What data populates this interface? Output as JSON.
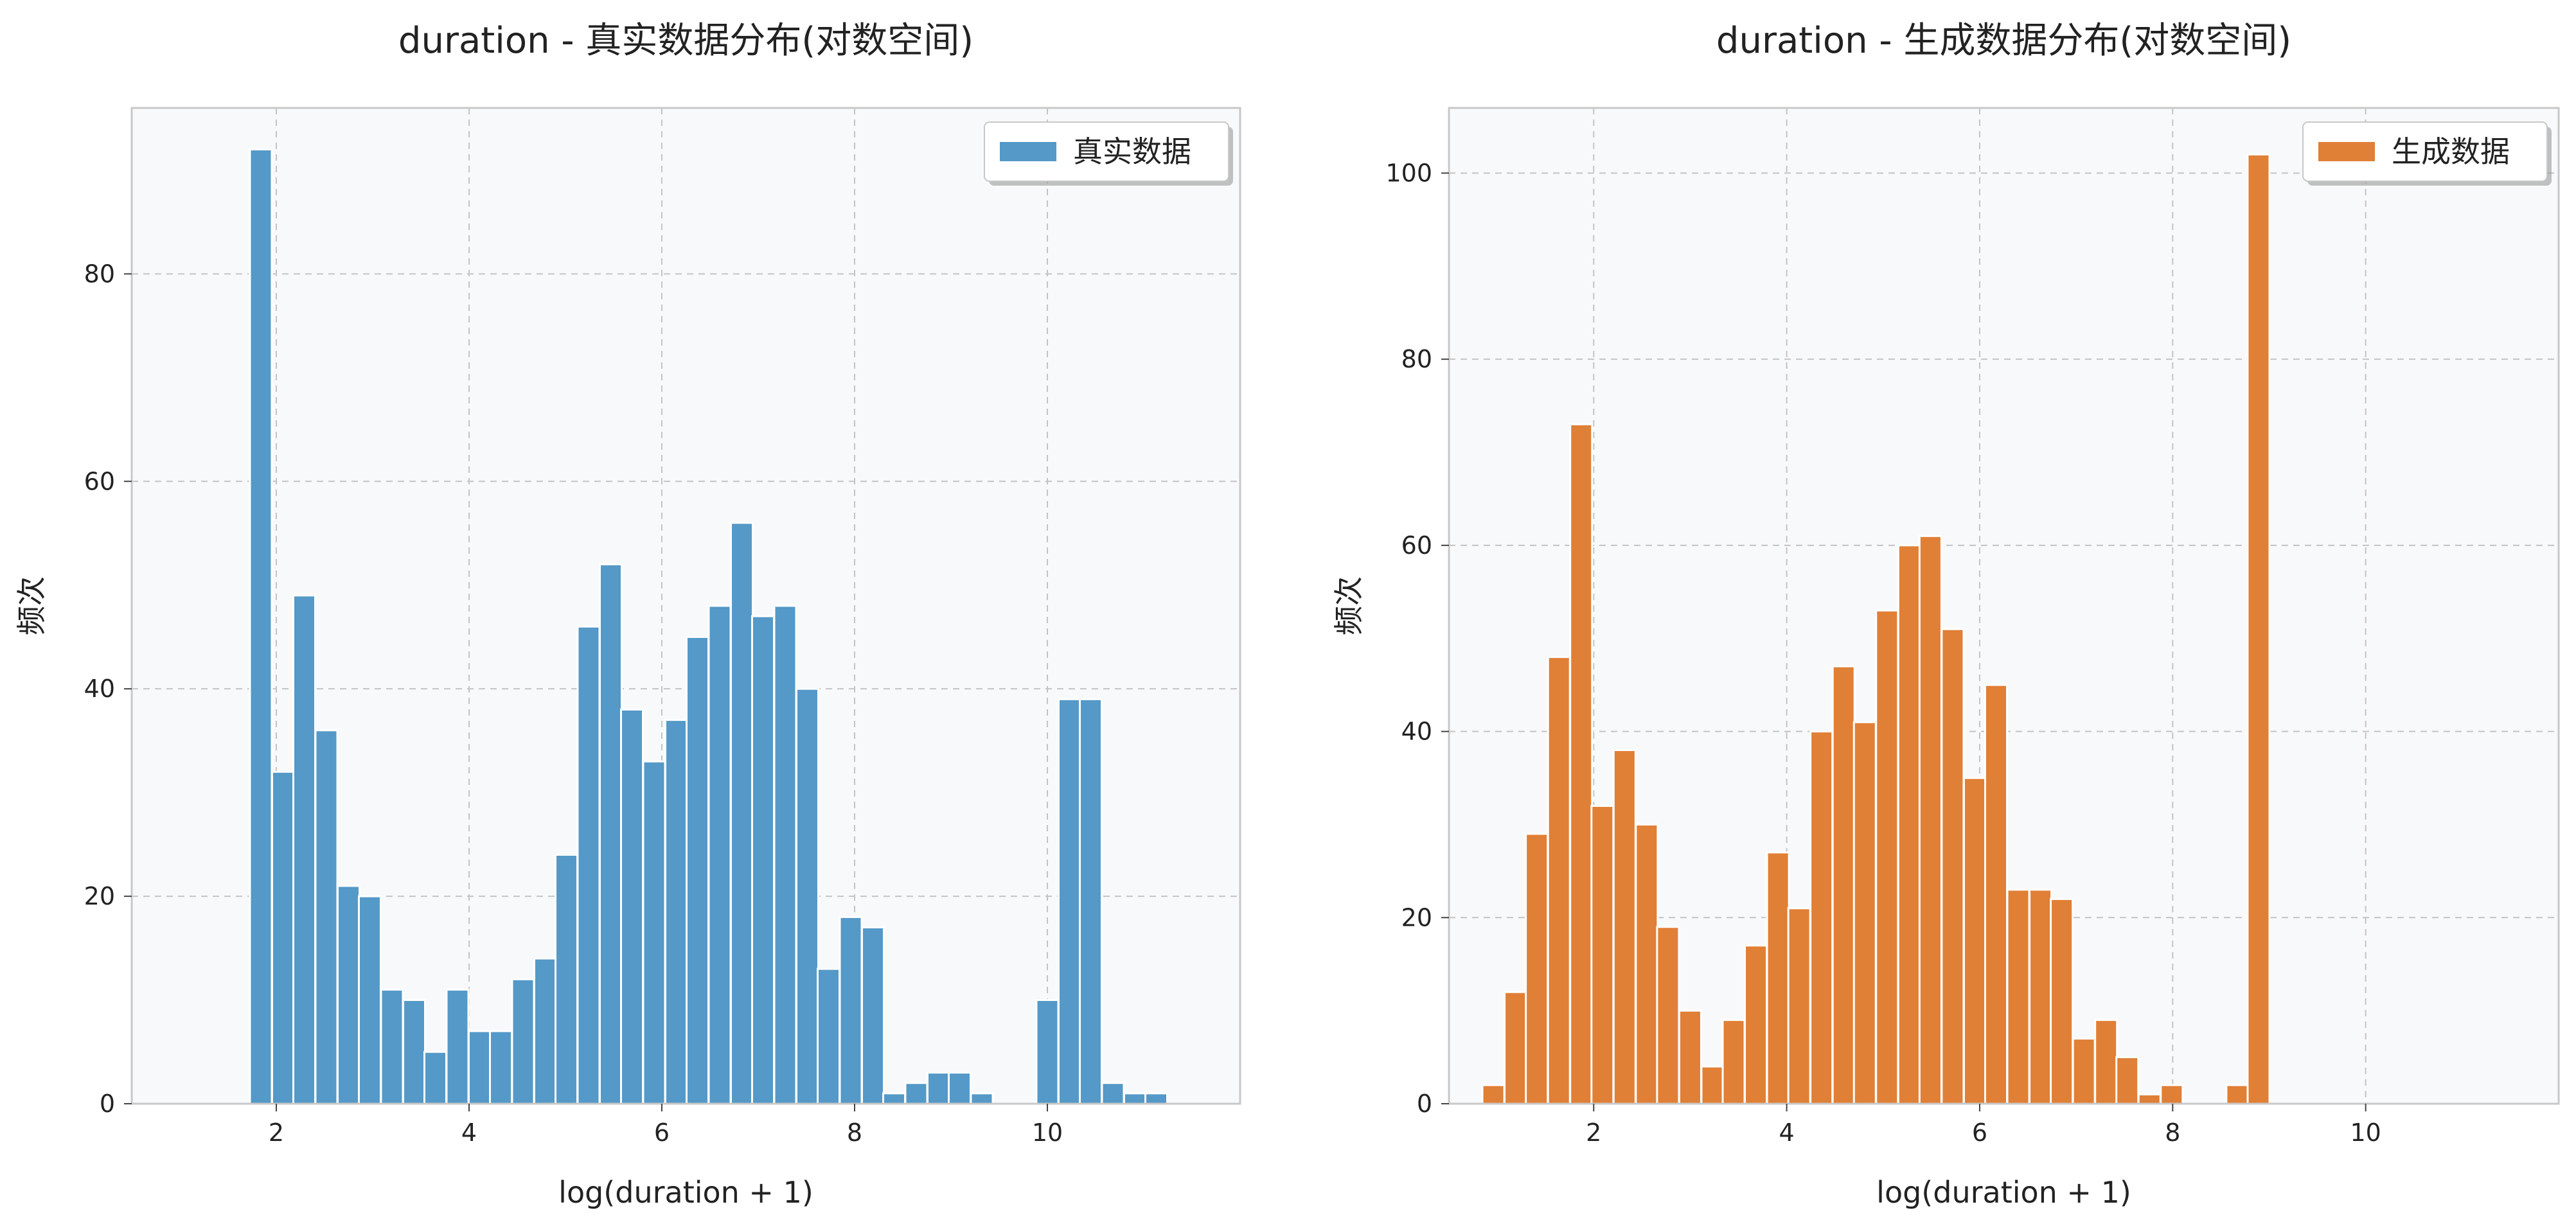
{
  "chart_data": [
    {
      "type": "bar",
      "title": "duration - 真实数据分布(对数空间)",
      "xlabel": "log(duration + 1)",
      "ylabel": "频次",
      "xlim": [
        0.5,
        12.0
      ],
      "ylim": [
        0,
        96
      ],
      "xticks": [
        2,
        4,
        6,
        8,
        10
      ],
      "yticks": [
        0,
        20,
        40,
        60,
        80
      ],
      "grid": true,
      "legend_position": "top-right",
      "bin_width": 0.2265,
      "color": "#5499c7",
      "series": [
        {
          "name": "真实数据",
          "x": [
            1.84,
            2.07,
            2.29,
            2.52,
            2.75,
            2.97,
            3.2,
            3.43,
            3.65,
            3.88,
            4.11,
            4.33,
            4.56,
            4.79,
            5.01,
            5.24,
            5.47,
            5.69,
            5.92,
            6.15,
            6.37,
            6.6,
            6.83,
            7.05,
            7.28,
            7.51,
            7.73,
            7.96,
            8.19,
            8.41,
            8.64,
            8.87,
            9.09,
            9.32,
            9.55,
            9.77,
            10.0,
            10.23,
            10.45,
            10.68,
            10.91,
            11.13
          ],
          "values": [
            92,
            32,
            49,
            36,
            21,
            20,
            11,
            10,
            5,
            11,
            7,
            7,
            12,
            14,
            24,
            46,
            52,
            38,
            33,
            37,
            45,
            48,
            56,
            47,
            48,
            40,
            13,
            18,
            17,
            1,
            2,
            3,
            3,
            1,
            0,
            0,
            10,
            39,
            39,
            2,
            1,
            1
          ]
        }
      ]
    },
    {
      "type": "bar",
      "title": "duration - 生成数据分布(对数空间)",
      "xlabel": "log(duration + 1)",
      "ylabel": "频次",
      "xlim": [
        0.5,
        12.0
      ],
      "ylim": [
        0,
        107
      ],
      "xticks": [
        2,
        4,
        6,
        8,
        10
      ],
      "yticks": [
        0,
        20,
        40,
        60,
        80,
        100
      ],
      "grid": true,
      "legend_position": "top-right",
      "bin_width": 0.2265,
      "color": "#e07f36",
      "series": [
        {
          "name": "生成数据",
          "x": [
            0.96,
            1.19,
            1.41,
            1.64,
            1.87,
            2.09,
            2.32,
            2.55,
            2.77,
            3.0,
            3.23,
            3.45,
            3.68,
            3.91,
            4.13,
            4.36,
            4.59,
            4.81,
            5.04,
            5.27,
            5.49,
            5.72,
            5.95,
            6.17,
            6.4,
            6.63,
            6.85,
            7.08,
            7.31,
            7.53,
            7.76,
            7.99,
            8.21,
            8.44,
            8.67,
            8.89
          ],
          "values": [
            2,
            12,
            29,
            48,
            73,
            32,
            38,
            30,
            19,
            10,
            4,
            9,
            17,
            27,
            21,
            40,
            47,
            41,
            53,
            60,
            61,
            51,
            35,
            45,
            23,
            23,
            22,
            7,
            9,
            5,
            1,
            2,
            0,
            0,
            2,
            102
          ]
        }
      ]
    }
  ]
}
